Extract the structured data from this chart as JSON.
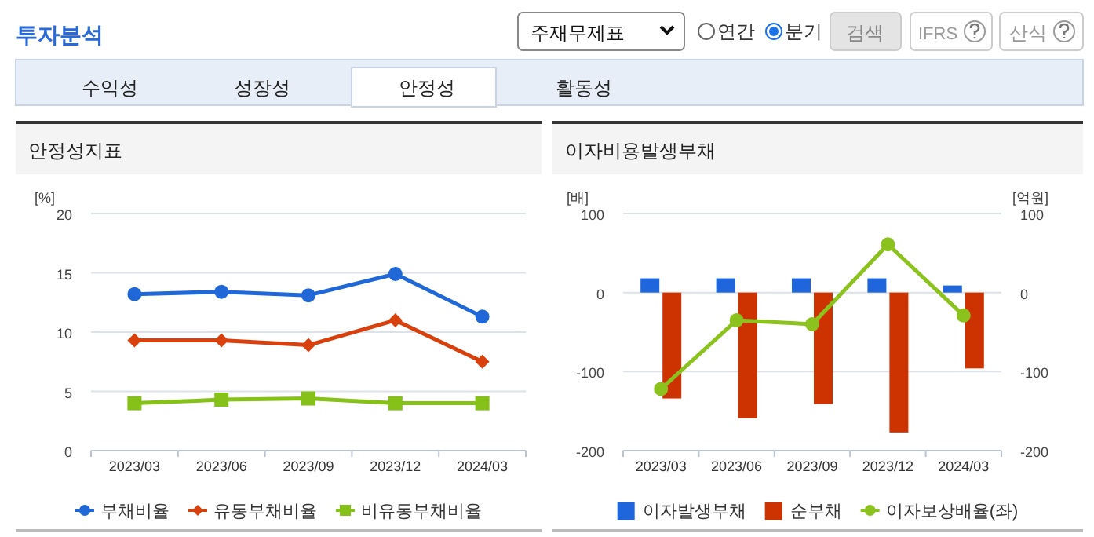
{
  "chart_data": [
    {
      "type": "other",
      "title": "투자분석",
      "annotations": [
        "주재무제표",
        "연간",
        "분기",
        "검색",
        "IFRS",
        "산식",
        "수익성",
        "성장성",
        "안정성",
        "활동성"
      ]
    },
    {
      "type": "line",
      "title": "안정성지표",
      "ylabel": "[%]",
      "categories": [
        "2023/03",
        "2023/06",
        "2023/09",
        "2023/12",
        "2024/03"
      ],
      "ylim": [
        0,
        20
      ],
      "yticks": [
        0,
        5,
        10,
        15,
        20
      ],
      "grid": "y",
      "legend": "bottom",
      "series": [
        {
          "name": "부채비율",
          "color": "#2068d8",
          "marker": "circle",
          "values": [
            13.2,
            13.4,
            13.1,
            14.9,
            11.3
          ]
        },
        {
          "name": "유동부채비율",
          "color": "#d8400e",
          "marker": "diamond",
          "values": [
            9.3,
            9.3,
            8.9,
            11.0,
            7.5
          ]
        },
        {
          "name": "비유동부채비율",
          "color": "#86c11a",
          "marker": "square",
          "values": [
            4.0,
            4.3,
            4.4,
            4.0,
            4.0
          ]
        }
      ]
    },
    {
      "type": "bar",
      "title": "이자비용발생부채",
      "ylabel": "[배]",
      "y2label": "[억원]",
      "categories": [
        "2023/03",
        "2023/06",
        "2023/09",
        "2023/12",
        "2024/03"
      ],
      "ylim": [
        -200,
        100
      ],
      "yticks": [
        -200,
        -100,
        0,
        100
      ],
      "y2lim": [
        -200,
        100
      ],
      "y2ticks": [
        -200,
        -100,
        0,
        100
      ],
      "grid": "y",
      "legend": "bottom",
      "series": [
        {
          "name": "이자발생부채",
          "type": "bar",
          "color": "#1f66dc",
          "values": [
            18,
            18,
            18,
            18,
            9
          ]
        },
        {
          "name": "순부채",
          "type": "bar",
          "color": "#cc3300",
          "values": [
            -134,
            -159,
            -141,
            -177,
            -96
          ]
        },
        {
          "name": "이자보상배율(좌)",
          "type": "line",
          "color": "#8cc21e",
          "marker": "circle",
          "values": [
            -122,
            -35,
            -40,
            61,
            -29
          ]
        }
      ]
    }
  ]
}
